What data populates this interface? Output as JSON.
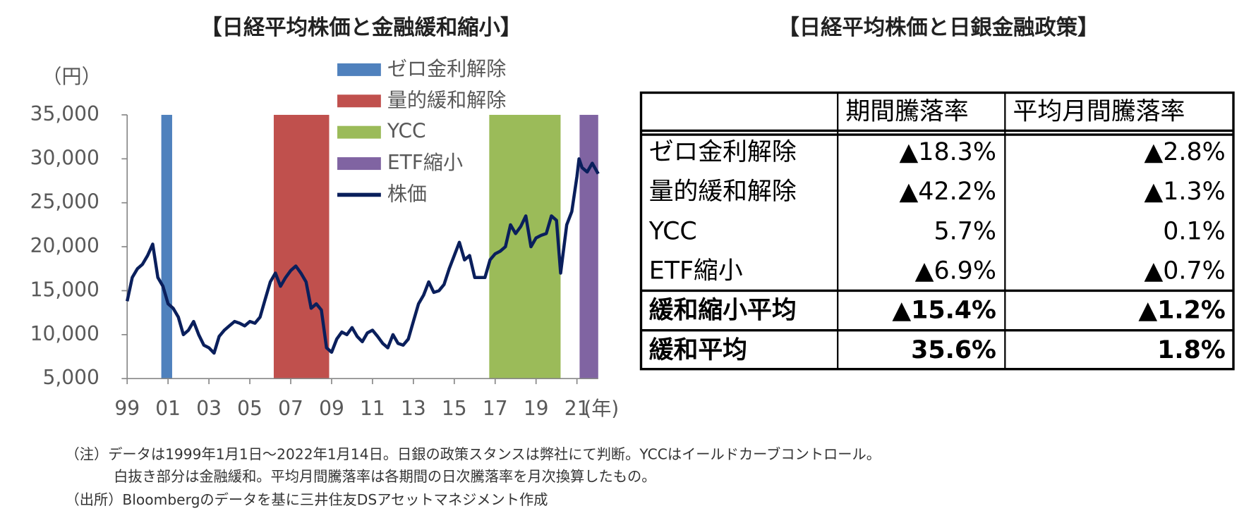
{
  "chart_data": {
    "type": "line",
    "title": "【日経平均株価と金融緩和縮小】",
    "y_label": "（円）",
    "x_label": "(年)",
    "xlim": [
      1999,
      2022.04
    ],
    "xticks": [
      {
        "value": 1999,
        "label": "99"
      },
      {
        "value": 2001,
        "label": "01"
      },
      {
        "value": 2003,
        "label": "03"
      },
      {
        "value": 2005,
        "label": "05"
      },
      {
        "value": 2007,
        "label": "07"
      },
      {
        "value": 2009,
        "label": "09"
      },
      {
        "value": 2011,
        "label": "11"
      },
      {
        "value": 2013,
        "label": "13"
      },
      {
        "value": 2015,
        "label": "15"
      },
      {
        "value": 2017,
        "label": "17"
      },
      {
        "value": 2019,
        "label": "19"
      },
      {
        "value": 2021,
        "label": "21"
      }
    ],
    "ylim": [
      5000,
      35000
    ],
    "yticks": [
      {
        "value": 5000,
        "label": "5,000"
      },
      {
        "value": 10000,
        "label": "10,000"
      },
      {
        "value": 15000,
        "label": "15,000"
      },
      {
        "value": 20000,
        "label": "20,000"
      },
      {
        "value": 25000,
        "label": "25,000"
      },
      {
        "value": 30000,
        "label": "30,000"
      },
      {
        "value": 35000,
        "label": "35,000"
      }
    ],
    "bands": [
      {
        "name": "ゼロ金利解除",
        "color": "#4f81bd",
        "x": [
          2000.67,
          2001.2
        ]
      },
      {
        "name": "量的緩和解除",
        "color": "#c0504d",
        "x": [
          2006.17,
          2008.88
        ]
      },
      {
        "name": "YCC",
        "color": "#9bbb59",
        "x": [
          2016.71,
          2020.2
        ]
      },
      {
        "name": "ETF縮小",
        "color": "#8064a2",
        "x": [
          2021.13,
          2022.04
        ]
      }
    ],
    "series": [
      {
        "name": "株価",
        "color": "#0a1f5c",
        "x": [
          1999.0,
          1999.25,
          1999.5,
          1999.75,
          2000.0,
          2000.25,
          2000.5,
          2000.75,
          2001.0,
          2001.25,
          2001.5,
          2001.75,
          2002.0,
          2002.25,
          2002.5,
          2002.75,
          2003.0,
          2003.25,
          2003.5,
          2003.75,
          2004.0,
          2004.25,
          2004.5,
          2004.75,
          2005.0,
          2005.25,
          2005.5,
          2005.75,
          2006.0,
          2006.25,
          2006.5,
          2006.75,
          2007.0,
          2007.25,
          2007.5,
          2007.75,
          2008.0,
          2008.25,
          2008.5,
          2008.75,
          2009.0,
          2009.25,
          2009.5,
          2009.75,
          2010.0,
          2010.25,
          2010.5,
          2010.75,
          2011.0,
          2011.25,
          2011.5,
          2011.75,
          2012.0,
          2012.25,
          2012.5,
          2012.75,
          2013.0,
          2013.25,
          2013.5,
          2013.75,
          2014.0,
          2014.25,
          2014.5,
          2014.75,
          2015.0,
          2015.25,
          2015.5,
          2015.75,
          2016.0,
          2016.25,
          2016.5,
          2016.75,
          2017.0,
          2017.25,
          2017.5,
          2017.75,
          2018.0,
          2018.25,
          2018.5,
          2018.75,
          2019.0,
          2019.25,
          2019.5,
          2019.75,
          2020.0,
          2020.2,
          2020.5,
          2020.75,
          2021.0,
          2021.1,
          2021.25,
          2021.5,
          2021.75,
          2022.04
        ],
        "values": [
          13800,
          16500,
          17500,
          18000,
          19000,
          20300,
          16500,
          15500,
          13500,
          13000,
          12000,
          10000,
          10500,
          11500,
          10000,
          8800,
          8500,
          7900,
          9800,
          10500,
          11000,
          11500,
          11300,
          11000,
          11500,
          11300,
          12000,
          14000,
          16000,
          17000,
          15500,
          16500,
          17300,
          17800,
          17000,
          16000,
          13000,
          13500,
          12800,
          8500,
          8000,
          9500,
          10300,
          10000,
          10800,
          9800,
          9200,
          10200,
          10500,
          9800,
          9000,
          8500,
          10000,
          9000,
          8800,
          9500,
          11500,
          13500,
          14500,
          16000,
          14800,
          15000,
          15700,
          17500,
          19000,
          20500,
          18500,
          19000,
          16500,
          16500,
          16500,
          18500,
          19200,
          19500,
          20000,
          22500,
          21500,
          22300,
          23500,
          20000,
          21000,
          21300,
          21500,
          23500,
          23000,
          17000,
          22500,
          24000,
          28000,
          30000,
          29000,
          28500,
          29500,
          28300
        ]
      }
    ]
  },
  "table": {
    "title": "【日経平均株価と日銀金融政策】",
    "columns": [
      "期間騰落率",
      "平均月間騰落率"
    ],
    "rows": [
      {
        "label": "ゼロ金利解除",
        "cells": [
          "▲18.3%",
          "▲2.8%"
        ]
      },
      {
        "label": "量的緩和解除",
        "cells": [
          "▲42.2%",
          "▲1.3%"
        ]
      },
      {
        "label": "YCC",
        "cells": [
          "5.7%",
          "0.1%"
        ]
      },
      {
        "label": "ETF縮小",
        "cells": [
          "▲6.9%",
          "▲0.7%"
        ]
      },
      {
        "label": "緩和縮小平均",
        "cells": [
          "▲15.4%",
          "▲1.2%"
        ]
      },
      {
        "label": "緩和平均",
        "cells": [
          "35.6%",
          "1.8%"
        ]
      }
    ]
  },
  "notes": [
    "（注）データは1999年1月1日～2022年1月14日。日銀の政策スタンスは弊社にて判断。YCCはイールドカーブコントロール。",
    "白抜き部分は金融緩和。平均月間騰落率は各期間の日次騰落率を月次換算したもの。",
    "（出所）Bloombergのデータを基に三井住友DSアセットマネジメント作成"
  ]
}
